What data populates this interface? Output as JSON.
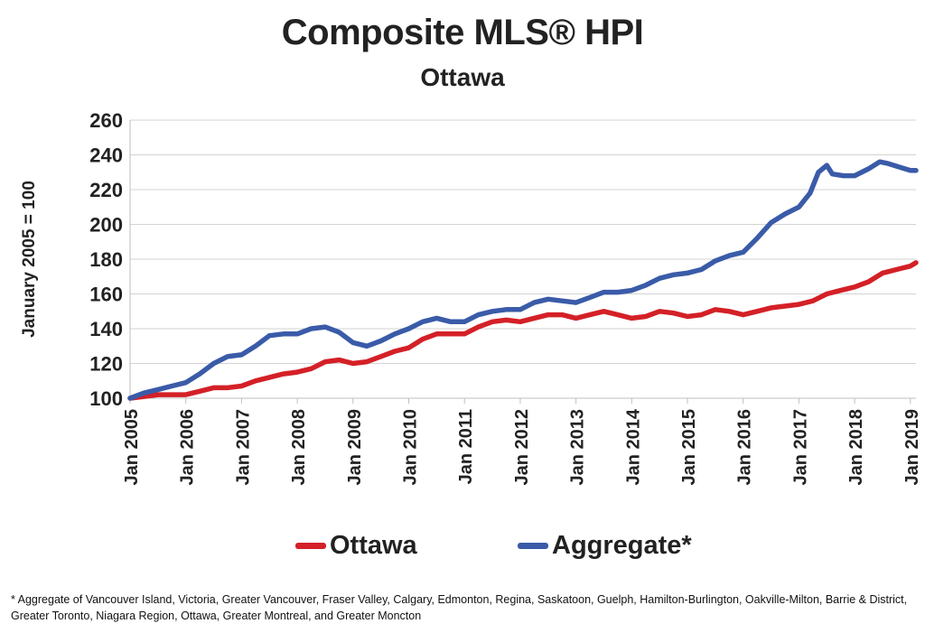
{
  "chart_data": {
    "type": "line",
    "title": "Composite MLS® HPI",
    "subtitle": "Ottawa",
    "ylabel": "January 2005 = 100",
    "xlabel": "",
    "ylim": [
      100,
      260
    ],
    "yticks": [
      100,
      120,
      140,
      160,
      180,
      200,
      220,
      240,
      260
    ],
    "xlim": [
      2005.0,
      2019.1
    ],
    "xticks": [
      {
        "value": 2005,
        "label": "Jan 2005"
      },
      {
        "value": 2006,
        "label": "Jan 2006"
      },
      {
        "value": 2007,
        "label": "Jan 2007"
      },
      {
        "value": 2008,
        "label": "Jan 2008"
      },
      {
        "value": 2009,
        "label": "Jan 2009"
      },
      {
        "value": 2010,
        "label": "Jan 2010"
      },
      {
        "value": 2011,
        "label": "Jan 2011"
      },
      {
        "value": 2012,
        "label": "Jan 2012"
      },
      {
        "value": 2013,
        "label": "Jan 2013"
      },
      {
        "value": 2014,
        "label": "Jan 2014"
      },
      {
        "value": 2015,
        "label": "Jan 2015"
      },
      {
        "value": 2016,
        "label": "Jan 2016"
      },
      {
        "value": 2017,
        "label": "Jan 2017"
      },
      {
        "value": 2018,
        "label": "Jan 2018"
      },
      {
        "value": 2019,
        "label": "Jan 2019"
      }
    ],
    "grid": "horizontal",
    "legend_position": "bottom",
    "series": [
      {
        "name": "Ottawa",
        "color": "#d42027",
        "points": [
          [
            2005.0,
            100
          ],
          [
            2005.25,
            101
          ],
          [
            2005.5,
            102
          ],
          [
            2005.75,
            102
          ],
          [
            2006.0,
            102
          ],
          [
            2006.25,
            104
          ],
          [
            2006.5,
            106
          ],
          [
            2006.75,
            106
          ],
          [
            2007.0,
            107
          ],
          [
            2007.25,
            110
          ],
          [
            2007.5,
            112
          ],
          [
            2007.75,
            114
          ],
          [
            2008.0,
            115
          ],
          [
            2008.25,
            117
          ],
          [
            2008.5,
            121
          ],
          [
            2008.75,
            122
          ],
          [
            2009.0,
            120
          ],
          [
            2009.25,
            121
          ],
          [
            2009.5,
            124
          ],
          [
            2009.75,
            127
          ],
          [
            2010.0,
            129
          ],
          [
            2010.25,
            134
          ],
          [
            2010.5,
            137
          ],
          [
            2010.75,
            137
          ],
          [
            2011.0,
            137
          ],
          [
            2011.25,
            141
          ],
          [
            2011.5,
            144
          ],
          [
            2011.75,
            145
          ],
          [
            2012.0,
            144
          ],
          [
            2012.25,
            146
          ],
          [
            2012.5,
            148
          ],
          [
            2012.75,
            148
          ],
          [
            2013.0,
            146
          ],
          [
            2013.25,
            148
          ],
          [
            2013.5,
            150
          ],
          [
            2013.75,
            148
          ],
          [
            2014.0,
            146
          ],
          [
            2014.25,
            147
          ],
          [
            2014.5,
            150
          ],
          [
            2014.75,
            149
          ],
          [
            2015.0,
            147
          ],
          [
            2015.25,
            148
          ],
          [
            2015.5,
            151
          ],
          [
            2015.75,
            150
          ],
          [
            2016.0,
            148
          ],
          [
            2016.25,
            150
          ],
          [
            2016.5,
            152
          ],
          [
            2016.75,
            153
          ],
          [
            2017.0,
            154
          ],
          [
            2017.25,
            156
          ],
          [
            2017.5,
            160
          ],
          [
            2017.75,
            162
          ],
          [
            2018.0,
            164
          ],
          [
            2018.25,
            167
          ],
          [
            2018.5,
            172
          ],
          [
            2018.75,
            174
          ],
          [
            2019.0,
            176
          ],
          [
            2019.1,
            178
          ]
        ]
      },
      {
        "name": "Aggregate*",
        "color": "#3a5ba8",
        "points": [
          [
            2005.0,
            100
          ],
          [
            2005.25,
            103
          ],
          [
            2005.5,
            105
          ],
          [
            2005.75,
            107
          ],
          [
            2006.0,
            109
          ],
          [
            2006.25,
            114
          ],
          [
            2006.5,
            120
          ],
          [
            2006.75,
            124
          ],
          [
            2007.0,
            125
          ],
          [
            2007.25,
            130
          ],
          [
            2007.5,
            136
          ],
          [
            2007.75,
            137
          ],
          [
            2008.0,
            137
          ],
          [
            2008.25,
            140
          ],
          [
            2008.5,
            141
          ],
          [
            2008.75,
            138
          ],
          [
            2009.0,
            132
          ],
          [
            2009.25,
            130
          ],
          [
            2009.5,
            133
          ],
          [
            2009.75,
            137
          ],
          [
            2010.0,
            140
          ],
          [
            2010.25,
            144
          ],
          [
            2010.5,
            146
          ],
          [
            2010.75,
            144
          ],
          [
            2011.0,
            144
          ],
          [
            2011.25,
            148
          ],
          [
            2011.5,
            150
          ],
          [
            2011.75,
            151
          ],
          [
            2012.0,
            151
          ],
          [
            2012.25,
            155
          ],
          [
            2012.5,
            157
          ],
          [
            2012.75,
            156
          ],
          [
            2013.0,
            155
          ],
          [
            2013.25,
            158
          ],
          [
            2013.5,
            161
          ],
          [
            2013.75,
            161
          ],
          [
            2014.0,
            162
          ],
          [
            2014.25,
            165
          ],
          [
            2014.5,
            169
          ],
          [
            2014.75,
            171
          ],
          [
            2015.0,
            172
          ],
          [
            2015.25,
            174
          ],
          [
            2015.5,
            179
          ],
          [
            2015.75,
            182
          ],
          [
            2016.0,
            184
          ],
          [
            2016.25,
            192
          ],
          [
            2016.5,
            201
          ],
          [
            2016.75,
            206
          ],
          [
            2017.0,
            210
          ],
          [
            2017.2,
            218
          ],
          [
            2017.35,
            230
          ],
          [
            2017.5,
            234
          ],
          [
            2017.6,
            229
          ],
          [
            2017.8,
            228
          ],
          [
            2018.0,
            228
          ],
          [
            2018.25,
            232
          ],
          [
            2018.45,
            236
          ],
          [
            2018.6,
            235
          ],
          [
            2018.8,
            233
          ],
          [
            2019.0,
            231
          ],
          [
            2019.1,
            231
          ]
        ]
      }
    ]
  },
  "legend": {
    "items": [
      {
        "label": "Ottawa",
        "color": "#d42027"
      },
      {
        "label": "Aggregate*",
        "color": "#3a5ba8"
      }
    ]
  },
  "footnote": "* Aggregate of Vancouver Island, Victoria, Greater Vancouver, Fraser Valley, Calgary, Edmonton, Regina, Saskatoon, Guelph, Hamilton-Burlington, Oakville-Milton, Barrie & District, Greater Toronto, Niagara Region, Ottawa, Greater Montreal, and Greater Moncton"
}
